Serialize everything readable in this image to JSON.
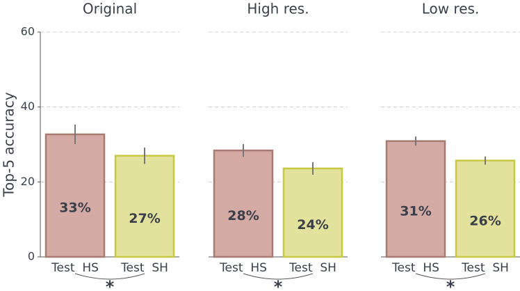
{
  "chart_data": [
    {
      "type": "bar",
      "title": "Original",
      "ylabel": "Top-5 accuracy",
      "categories": [
        "Test  HS",
        "Test  SH"
      ],
      "values": [
        32.7,
        27.0
      ],
      "errors": [
        2.6,
        2.2
      ],
      "value_labels": [
        "33%",
        "27%"
      ],
      "colors": [
        "#d4aaa4",
        "#e2e29c"
      ],
      "edgecolors": [
        "#a87a72",
        "#c8c844"
      ],
      "label_colors": [
        "#3e6272",
        "#2e3470"
      ],
      "ylim": [
        0,
        60
      ],
      "yticks": [
        0,
        20,
        40,
        60
      ],
      "grid": true,
      "annotation": "*"
    },
    {
      "type": "bar",
      "title": "High res.",
      "categories": [
        "Test  HS",
        "Test  SH"
      ],
      "values": [
        28.4,
        23.6
      ],
      "errors": [
        1.7,
        1.7
      ],
      "value_labels": [
        "28%",
        "24%"
      ],
      "colors": [
        "#d4aaa4",
        "#e2e29c"
      ],
      "edgecolors": [
        "#a87a72",
        "#c8c844"
      ],
      "label_colors": [
        "#3e6272",
        "#2e3470"
      ],
      "ylim": [
        0,
        60
      ],
      "yticks": [
        0,
        20,
        40,
        60
      ],
      "grid": true,
      "annotation": "*"
    },
    {
      "type": "bar",
      "title": "Low res.",
      "categories": [
        "Test  HS",
        "Test  SH"
      ],
      "values": [
        30.9,
        25.7
      ],
      "errors": [
        1.2,
        1.1
      ],
      "value_labels": [
        "31%",
        "26%"
      ],
      "colors": [
        "#d4aaa4",
        "#e2e29c"
      ],
      "edgecolors": [
        "#a87a72",
        "#c8c844"
      ],
      "label_colors": [
        "#3e6272",
        "#2e3470"
      ],
      "ylim": [
        0,
        60
      ],
      "yticks": [
        0,
        20,
        40,
        60
      ],
      "grid": true,
      "annotation": "*"
    }
  ]
}
